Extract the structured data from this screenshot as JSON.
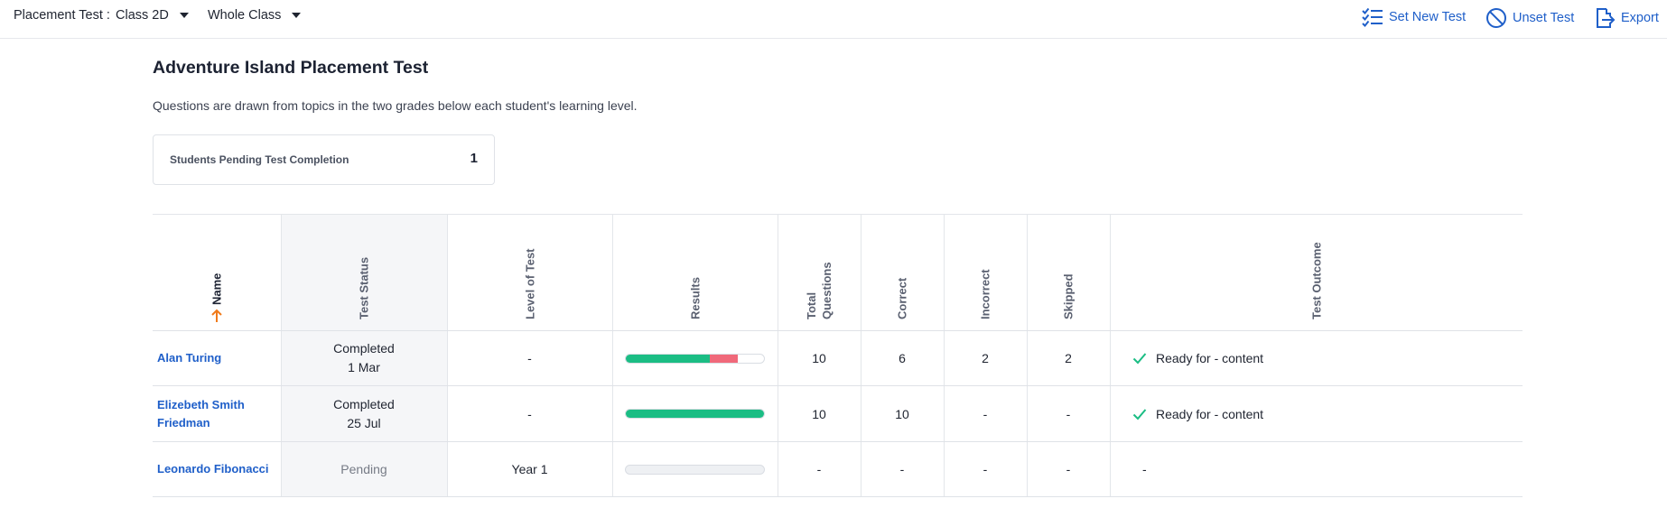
{
  "topbar": {
    "label": "Placement Test :",
    "class_select": "Class 2D",
    "group_select": "Whole Class",
    "actions": [
      {
        "label": "Set New Test",
        "icon": "checklist-icon"
      },
      {
        "label": "Unset Test",
        "icon": "ban-icon"
      },
      {
        "label": "Export",
        "icon": "export-icon"
      }
    ]
  },
  "page": {
    "title": "Adventure Island Placement Test",
    "subtitle": "Questions are drawn from topics in the two grades below each student's learning level.",
    "pending_card": {
      "label": "Students Pending Test Completion",
      "value": "1"
    }
  },
  "colors": {
    "accent": "#1f5fc9",
    "correct": "#1bbd84",
    "incorrect": "#f0697a",
    "sort_arrow": "#f07a1a"
  },
  "table": {
    "headers": {
      "name": "Name",
      "status": "Test Status",
      "level": "Level of Test",
      "results": "Results",
      "total": "Total Questions",
      "correct": "Correct",
      "incorrect": "Incorrect",
      "skipped": "Skipped",
      "outcome": "Test Outcome"
    },
    "sort": {
      "column": "name",
      "direction": "ascending"
    },
    "rows": [
      {
        "name": "Alan Turing",
        "status_line1": "Completed",
        "status_line2": "1 Mar",
        "level": "-",
        "results": {
          "correct": 6,
          "incorrect": 2,
          "skipped": 2,
          "total": 10
        },
        "total": "10",
        "correct": "6",
        "incorrect": "2",
        "skipped": "2",
        "outcome": "Ready for - content",
        "outcome_check": true
      },
      {
        "name": "Elizebeth Smith Friedman",
        "status_line1": "Completed",
        "status_line2": "25 Jul",
        "level": "-",
        "results": {
          "correct": 10,
          "incorrect": 0,
          "skipped": 0,
          "total": 10
        },
        "total": "10",
        "correct": "10",
        "incorrect": "-",
        "skipped": "-",
        "outcome": "Ready for - content",
        "outcome_check": true
      },
      {
        "name": "Leonardo Fibonacci",
        "status_line1": "Pending",
        "status_line2": "",
        "level": "Year 1",
        "results": {
          "correct": 0,
          "incorrect": 0,
          "skipped": 0,
          "total": 0
        },
        "total": "-",
        "correct": "-",
        "incorrect": "-",
        "skipped": "-",
        "outcome": "-",
        "outcome_check": false
      }
    ]
  }
}
